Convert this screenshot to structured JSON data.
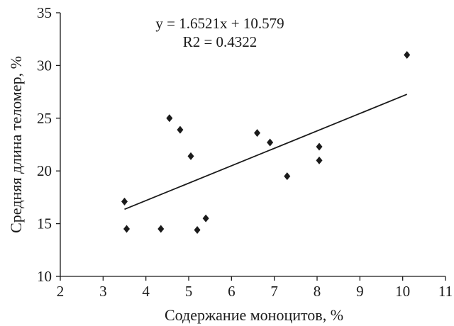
{
  "chart_data": {
    "type": "scatter",
    "title": "",
    "xlabel": "Содержание моноцитов, %",
    "ylabel": "Средняя длина теломер, %",
    "xlim": [
      2,
      11
    ],
    "ylim": [
      10,
      35
    ],
    "xticks": [
      2,
      3,
      4,
      5,
      6,
      7,
      8,
      9,
      10,
      11
    ],
    "yticks": [
      10,
      15,
      20,
      25,
      30,
      35
    ],
    "grid": false,
    "legend": "none",
    "series": [
      {
        "marker": "diamond",
        "points": [
          {
            "x": 3.5,
            "y": 17.1
          },
          {
            "x": 3.55,
            "y": 14.5
          },
          {
            "x": 4.35,
            "y": 14.5
          },
          {
            "x": 4.55,
            "y": 25.0
          },
          {
            "x": 4.8,
            "y": 23.9
          },
          {
            "x": 5.05,
            "y": 21.4
          },
          {
            "x": 5.2,
            "y": 14.4
          },
          {
            "x": 5.4,
            "y": 15.5
          },
          {
            "x": 6.6,
            "y": 23.6
          },
          {
            "x": 6.9,
            "y": 22.7
          },
          {
            "x": 7.3,
            "y": 19.5
          },
          {
            "x": 8.05,
            "y": 22.3
          },
          {
            "x": 8.05,
            "y": 21.0
          },
          {
            "x": 10.1,
            "y": 31.0
          }
        ]
      }
    ],
    "trendline": {
      "slope": 1.6521,
      "intercept": 10.579,
      "x_range": [
        3.5,
        10.1
      ]
    },
    "annotations": {
      "equation": "y = 1.6521x + 10.579",
      "r2": "R2 = 0.4322"
    },
    "colors": {
      "ink": "#1a1a1a"
    }
  }
}
